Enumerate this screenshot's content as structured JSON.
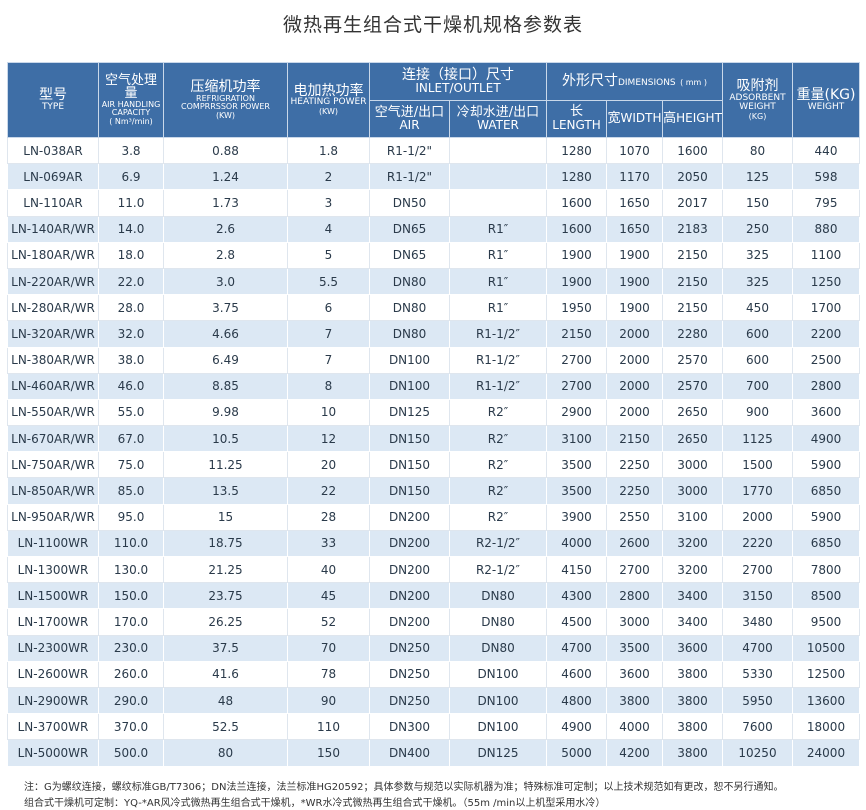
{
  "title": "微热再生组合式干燥机规格参数表",
  "headers": {
    "model_cn": "型号",
    "model_en": "TYPE",
    "air_cn": "空气处理量",
    "air_en1": "AIR HANDLING",
    "air_en2": "CAPACITY",
    "air_unit": "( Nm³/min)",
    "comp_cn": "压缩机功率",
    "comp_en1": "REFRIGRATION",
    "comp_en2": "COMPRRSSOR POWER",
    "comp_unit": "(KW)",
    "heat_cn": "电加热功率",
    "heat_en": "HEATING POWER",
    "heat_unit": "(KW)",
    "conn_cn": "连接（接口）尺寸",
    "conn_en": "INLET/OUTLET",
    "conn_air_cn": "空气进/出口",
    "conn_air_en": "AIR",
    "conn_water_cn": "冷却水进/出口",
    "conn_water_en": "WATER",
    "dim_cn": "外形尺寸",
    "dim_en": "DIMENSIONS",
    "dim_unit": "( mm )",
    "len_cn": "长",
    "len_en": "LENGTH",
    "wid_cn": "宽",
    "wid_en": "WIDTH",
    "hei_cn": "高",
    "hei_en": "HEIGHT",
    "ads_cn": "吸附剂",
    "ads_en1": "ADSORBENT",
    "ads_en2": "WEIGHT",
    "ads_unit": "(KG)",
    "wt_cn": "重量(KG)",
    "wt_en": "WEIGHT"
  },
  "rows": [
    [
      "LN-038AR",
      "3.8",
      "0.88",
      "1.8",
      "R1-1/2\"",
      "",
      "1280",
      "1070",
      "1600",
      "80",
      "440"
    ],
    [
      "LN-069AR",
      "6.9",
      "1.24",
      "2",
      "R1-1/2\"",
      "",
      "1280",
      "1170",
      "2050",
      "125",
      "598"
    ],
    [
      "LN-110AR",
      "11.0",
      "1.73",
      "3",
      "DN50",
      "",
      "1600",
      "1650",
      "2017",
      "150",
      "795"
    ],
    [
      "LN-140AR/WR",
      "14.0",
      "2.6",
      "4",
      "DN65",
      "R1″",
      "1600",
      "1650",
      "2183",
      "250",
      "880"
    ],
    [
      "LN-180AR/WR",
      "18.0",
      "2.8",
      "5",
      "DN65",
      "R1″",
      "1900",
      "1900",
      "2150",
      "325",
      "1100"
    ],
    [
      "LN-220AR/WR",
      "22.0",
      "3.0",
      "5.5",
      "DN80",
      "R1″",
      "1900",
      "1900",
      "2150",
      "325",
      "1250"
    ],
    [
      "LN-280AR/WR",
      "28.0",
      "3.75",
      "6",
      "DN80",
      "R1″",
      "1950",
      "1900",
      "2150",
      "450",
      "1700"
    ],
    [
      "LN-320AR/WR",
      "32.0",
      "4.66",
      "7",
      "DN80",
      "R1-1/2″",
      "2150",
      "2000",
      "2280",
      "600",
      "2200"
    ],
    [
      "LN-380AR/WR",
      "38.0",
      "6.49",
      "7",
      "DN100",
      "R1-1/2″",
      "2700",
      "2000",
      "2570",
      "600",
      "2500"
    ],
    [
      "LN-460AR/WR",
      "46.0",
      "8.85",
      "8",
      "DN100",
      "R1-1/2″",
      "2700",
      "2000",
      "2570",
      "700",
      "2800"
    ],
    [
      "LN-550AR/WR",
      "55.0",
      "9.98",
      "10",
      "DN125",
      "R2″",
      "2900",
      "2000",
      "2650",
      "900",
      "3600"
    ],
    [
      "LN-670AR/WR",
      "67.0",
      "10.5",
      "12",
      "DN150",
      "R2″",
      "3100",
      "2150",
      "2650",
      "1125",
      "4900"
    ],
    [
      "LN-750AR/WR",
      "75.0",
      "11.25",
      "20",
      "DN150",
      "R2″",
      "3500",
      "2250",
      "3000",
      "1500",
      "5900"
    ],
    [
      "LN-850AR/WR",
      "85.0",
      "13.5",
      "22",
      "DN150",
      "R2″",
      "3500",
      "2250",
      "3000",
      "1770",
      "6850"
    ],
    [
      "LN-950AR/WR",
      "95.0",
      "15",
      "28",
      "DN200",
      "R2″",
      "3900",
      "2550",
      "3100",
      "2000",
      "5900"
    ],
    [
      "LN-1100WR",
      "110.0",
      "18.75",
      "33",
      "DN200",
      "R2-1/2″",
      "4000",
      "2600",
      "3200",
      "2220",
      "6850"
    ],
    [
      "LN-1300WR",
      "130.0",
      "21.25",
      "40",
      "DN200",
      "R2-1/2″",
      "4150",
      "2700",
      "3200",
      "2700",
      "7800"
    ],
    [
      "LN-1500WR",
      "150.0",
      "23.75",
      "45",
      "DN200",
      "DN80",
      "4300",
      "2800",
      "3400",
      "3150",
      "8500"
    ],
    [
      "LN-1700WR",
      "170.0",
      "26.25",
      "52",
      "DN200",
      "DN80",
      "4500",
      "3000",
      "3400",
      "3480",
      "9500"
    ],
    [
      "LN-2300WR",
      "230.0",
      "37.5",
      "70",
      "DN250",
      "DN80",
      "4700",
      "3500",
      "3600",
      "4700",
      "10500"
    ],
    [
      "LN-2600WR",
      "260.0",
      "41.6",
      "78",
      "DN250",
      "DN100",
      "4600",
      "3600",
      "3800",
      "5330",
      "12500"
    ],
    [
      "LN-2900WR",
      "290.0",
      "48",
      "90",
      "DN250",
      "DN100",
      "4800",
      "3800",
      "3800",
      "5950",
      "13600"
    ],
    [
      "LN-3700WR",
      "370.0",
      "52.5",
      "110",
      "DN300",
      "DN100",
      "4900",
      "4000",
      "3800",
      "7600",
      "18000"
    ],
    [
      "LN-5000WR",
      "500.0",
      "80",
      "150",
      "DN400",
      "DN125",
      "5000",
      "4200",
      "3800",
      "10250",
      "24000"
    ]
  ],
  "notes": {
    "line1": "注：G为螺纹连接，螺纹标准GB/T7306；DN法兰连接，法兰标准HG20592；具体参数与规范以实际机器为准；特殊标准可定制；以上技术规范如有更改，恕不另行通知。",
    "line2": "组合式干燥机可定制：YQ-*AR风冷式微热再生组合式干燥机，*WR水冷式微热再生组合式干燥机。（55m /min以上机型采用水冷）"
  }
}
